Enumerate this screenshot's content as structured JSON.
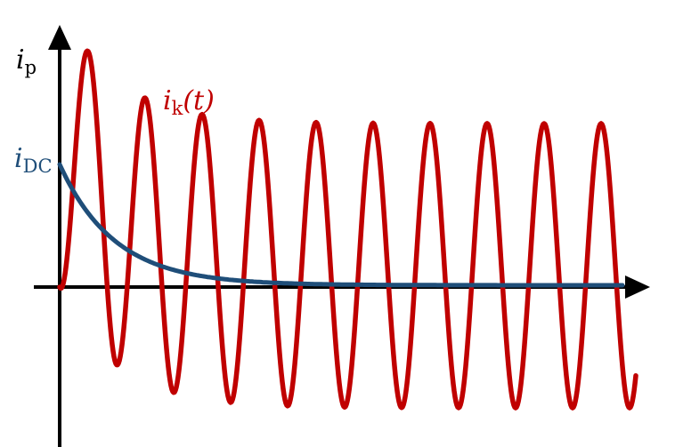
{
  "labels": {
    "y_axis": {
      "main": "i",
      "sub": "p"
    },
    "short_circuit": {
      "main": "i",
      "sub": "k",
      "arg": "(t)"
    },
    "dc_component": {
      "main": "i",
      "sub": "DC"
    }
  },
  "colors": {
    "axis": "#000000",
    "short_circuit_current": "#c00000",
    "dc_component": "#1f4e79"
  }
}
